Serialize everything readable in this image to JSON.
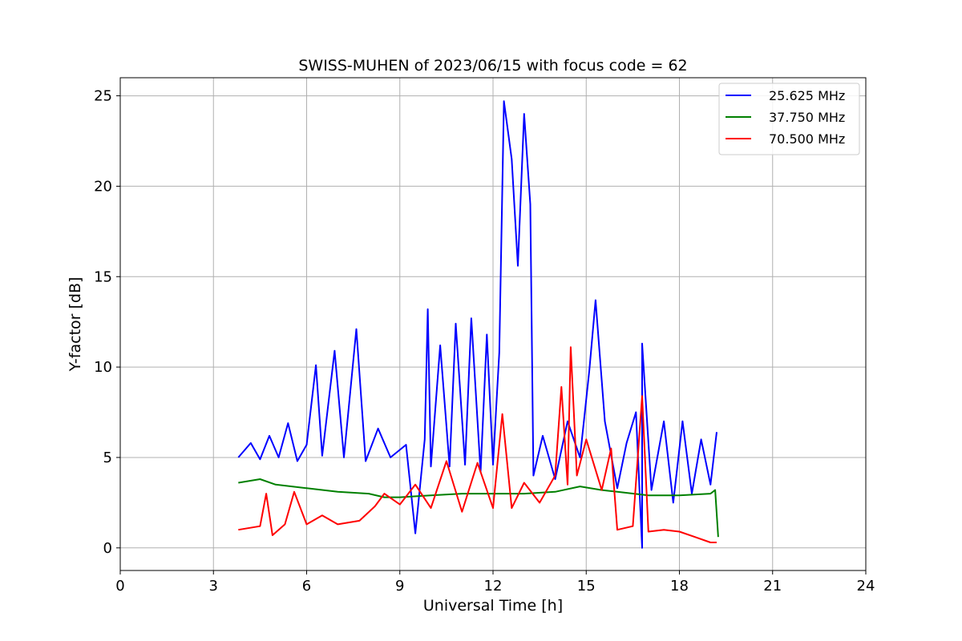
{
  "chart_data": {
    "type": "line",
    "title": "SWISS-MUHEN of 2023/06/15 with focus code = 62",
    "xlabel": "Universal Time [h]",
    "ylabel": "Y-factor [dB]",
    "xlim": [
      0,
      24
    ],
    "ylim": [
      -1.25,
      26.0
    ],
    "xticks": [
      0,
      3,
      6,
      9,
      12,
      15,
      18,
      21,
      24
    ],
    "xtick_labels": [
      "0",
      "3",
      "6",
      "9",
      "12",
      "15",
      "18",
      "21",
      "24"
    ],
    "yticks": [
      0,
      5,
      10,
      15,
      20,
      25
    ],
    "ytick_labels": [
      "0",
      "5",
      "10",
      "15",
      "20",
      "25"
    ],
    "grid": true,
    "legend_position": "top-right",
    "series": [
      {
        "name": "25.625 MHz",
        "color": "#0000ff",
        "points": [
          [
            3.8,
            5.0
          ],
          [
            4.2,
            5.8
          ],
          [
            4.5,
            4.9
          ],
          [
            4.8,
            6.2
          ],
          [
            5.1,
            5.0
          ],
          [
            5.4,
            6.9
          ],
          [
            5.7,
            4.8
          ],
          [
            6.0,
            5.7
          ],
          [
            6.3,
            10.1
          ],
          [
            6.5,
            5.1
          ],
          [
            6.9,
            10.9
          ],
          [
            7.2,
            5.0
          ],
          [
            7.6,
            12.1
          ],
          [
            7.9,
            4.8
          ],
          [
            8.3,
            6.6
          ],
          [
            8.7,
            5.0
          ],
          [
            9.2,
            5.7
          ],
          [
            9.5,
            0.8
          ],
          [
            9.8,
            6.0
          ],
          [
            9.9,
            13.2
          ],
          [
            10.0,
            4.5
          ],
          [
            10.3,
            11.2
          ],
          [
            10.6,
            4.5
          ],
          [
            10.8,
            12.4
          ],
          [
            11.1,
            4.6
          ],
          [
            11.3,
            12.7
          ],
          [
            11.6,
            4.2
          ],
          [
            11.8,
            11.8
          ],
          [
            12.0,
            4.6
          ],
          [
            12.2,
            10.8
          ],
          [
            12.35,
            24.7
          ],
          [
            12.6,
            21.5
          ],
          [
            12.8,
            15.6
          ],
          [
            13.0,
            24.0
          ],
          [
            13.2,
            19.0
          ],
          [
            13.3,
            4.0
          ],
          [
            13.6,
            6.2
          ],
          [
            14.0,
            3.8
          ],
          [
            14.4,
            7.0
          ],
          [
            14.8,
            5.0
          ],
          [
            15.1,
            9.8
          ],
          [
            15.3,
            13.7
          ],
          [
            15.6,
            7.0
          ],
          [
            16.0,
            3.3
          ],
          [
            16.3,
            5.8
          ],
          [
            16.6,
            7.5
          ],
          [
            16.8,
            0.0
          ],
          [
            16.8,
            11.3
          ],
          [
            17.1,
            3.2
          ],
          [
            17.5,
            7.0
          ],
          [
            17.8,
            2.5
          ],
          [
            18.1,
            7.0
          ],
          [
            18.4,
            3.0
          ],
          [
            18.7,
            6.0
          ],
          [
            19.0,
            3.5
          ],
          [
            19.2,
            6.4
          ]
        ]
      },
      {
        "name": "37.750 MHz",
        "color": "#008000",
        "points": [
          [
            3.8,
            3.6
          ],
          [
            4.5,
            3.8
          ],
          [
            5.0,
            3.5
          ],
          [
            6.0,
            3.3
          ],
          [
            7.0,
            3.1
          ],
          [
            8.0,
            3.0
          ],
          [
            8.5,
            2.8
          ],
          [
            9.0,
            2.8
          ],
          [
            10.0,
            2.9
          ],
          [
            11.0,
            3.0
          ],
          [
            12.0,
            3.0
          ],
          [
            13.0,
            3.0
          ],
          [
            14.0,
            3.1
          ],
          [
            14.8,
            3.4
          ],
          [
            15.5,
            3.2
          ],
          [
            16.0,
            3.1
          ],
          [
            17.0,
            2.9
          ],
          [
            18.0,
            2.9
          ],
          [
            19.0,
            3.0
          ],
          [
            19.15,
            3.2
          ],
          [
            19.25,
            0.6
          ]
        ]
      },
      {
        "name": "70.500 MHz",
        "color": "#ff0000",
        "points": [
          [
            3.8,
            1.0
          ],
          [
            4.5,
            1.2
          ],
          [
            4.7,
            3.0
          ],
          [
            4.9,
            0.7
          ],
          [
            5.3,
            1.3
          ],
          [
            5.6,
            3.1
          ],
          [
            6.0,
            1.3
          ],
          [
            6.5,
            1.8
          ],
          [
            7.0,
            1.3
          ],
          [
            7.7,
            1.5
          ],
          [
            8.2,
            2.3
          ],
          [
            8.5,
            3.0
          ],
          [
            9.0,
            2.4
          ],
          [
            9.5,
            3.5
          ],
          [
            10.0,
            2.2
          ],
          [
            10.5,
            4.8
          ],
          [
            11.0,
            2.0
          ],
          [
            11.5,
            4.7
          ],
          [
            12.0,
            2.2
          ],
          [
            12.3,
            7.4
          ],
          [
            12.6,
            2.2
          ],
          [
            13.0,
            3.6
          ],
          [
            13.5,
            2.5
          ],
          [
            14.0,
            4.0
          ],
          [
            14.2,
            8.9
          ],
          [
            14.4,
            3.5
          ],
          [
            14.5,
            11.1
          ],
          [
            14.7,
            4.0
          ],
          [
            15.0,
            6.0
          ],
          [
            15.5,
            3.2
          ],
          [
            15.8,
            5.5
          ],
          [
            16.0,
            1.0
          ],
          [
            16.5,
            1.2
          ],
          [
            16.8,
            8.4
          ],
          [
            17.0,
            0.9
          ],
          [
            17.5,
            1.0
          ],
          [
            18.0,
            0.9
          ],
          [
            18.5,
            0.6
          ],
          [
            19.0,
            0.3
          ],
          [
            19.2,
            0.3
          ]
        ]
      }
    ]
  }
}
